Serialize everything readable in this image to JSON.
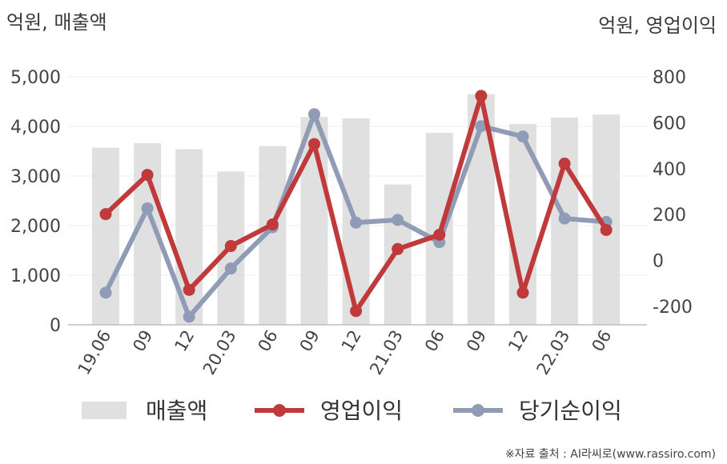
{
  "chart_data": {
    "type": "bar",
    "left_unit": "억원, 매출액",
    "right_unit": "억원, 영업이익",
    "categories": [
      "19.06",
      "09",
      "12",
      "20.03",
      "06",
      "09",
      "12",
      "21.03",
      "06",
      "09",
      "12",
      "22.03",
      "06"
    ],
    "left_ticks": [
      "5,000",
      "4,000",
      "3,000",
      "2,000",
      "1,000",
      "0"
    ],
    "right_ticks": [
      "800",
      "600",
      "400",
      "200",
      "0",
      "-200"
    ],
    "left_ylim": [
      0,
      5000
    ],
    "right_ylim": [
      -280,
      800
    ],
    "series": [
      {
        "name": "매출액",
        "type": "bar",
        "axis": "left",
        "color": "#e0e0e0",
        "values": [
          3570,
          3660,
          3540,
          3090,
          3600,
          4190,
          4160,
          2830,
          3870,
          4650,
          4050,
          4180,
          4240
        ]
      },
      {
        "name": "영업이익",
        "type": "line",
        "axis": "right",
        "color": "#c0393b",
        "values": [
          202,
          373,
          -128,
          63,
          157,
          507,
          -220,
          50,
          112,
          717,
          -140,
          422,
          133
        ]
      },
      {
        "name": "당기순이익",
        "type": "line",
        "axis": "right",
        "color": "#909cb6",
        "values": [
          -140,
          227,
          -245,
          -35,
          145,
          637,
          165,
          177,
          80,
          585,
          540,
          183,
          168
        ]
      }
    ],
    "legend_position": "bottom",
    "grid": true
  },
  "source_note": "※자료 출처 : AI라씨로(www.rassiro.com)"
}
